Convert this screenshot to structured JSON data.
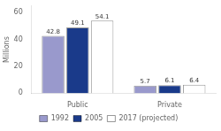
{
  "chart_data": {
    "type": "bar",
    "y_label": "Millions",
    "categories": [
      "Public",
      "Private"
    ],
    "series": [
      {
        "name": "1992",
        "color": "#9999cc",
        "values": [
          42.8,
          5.7
        ]
      },
      {
        "name": "2005",
        "color": "#1a3a8a",
        "values": [
          49.1,
          6.1
        ]
      },
      {
        "name": "2017 (projected)",
        "color": "#ffffff",
        "values": [
          54.1,
          6.4
        ]
      }
    ],
    "ylim": [
      0,
      65
    ],
    "yticks": [
      0,
      20,
      40,
      60
    ],
    "grid": false,
    "legend": "bottom",
    "data_labels": true
  }
}
